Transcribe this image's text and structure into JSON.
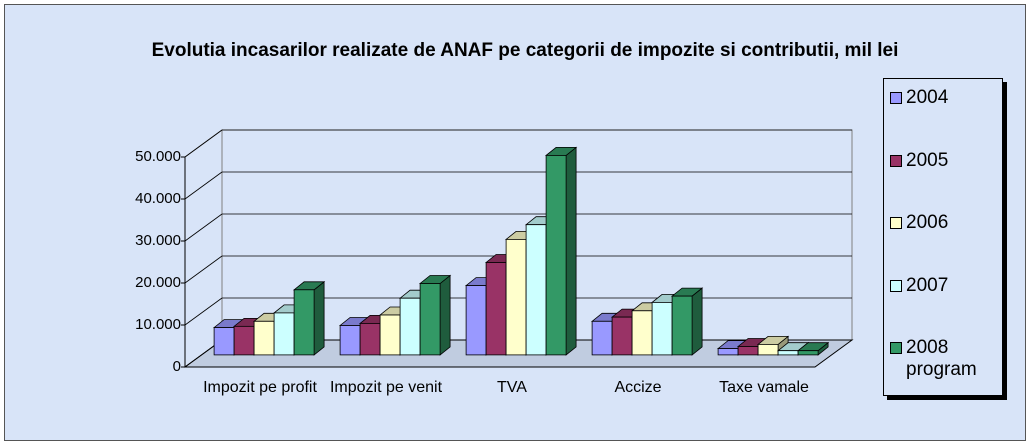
{
  "chart_data": {
    "type": "bar3d",
    "title": "Evolutia incasarilor realizate de ANAF pe categorii de impozite si contributii, mil lei",
    "categories": [
      "Impozit pe profit",
      "Impozit pe venit",
      "TVA",
      "Accize",
      "Taxe vamale"
    ],
    "series": [
      {
        "name": "2004",
        "color": "#9999ff",
        "values": [
          6500,
          7000,
          16500,
          8000,
          1500
        ]
      },
      {
        "name": "2005",
        "color": "#993366",
        "values": [
          6800,
          7500,
          22000,
          9000,
          2000
        ]
      },
      {
        "name": "2006",
        "color": "#ffffcc",
        "values": [
          8000,
          9500,
          27500,
          10500,
          2500
        ]
      },
      {
        "name": "2007",
        "color": "#ccffff",
        "values": [
          10000,
          13500,
          31000,
          12500,
          1000
        ]
      },
      {
        "name": "2008 program",
        "color": "#339966",
        "values": [
          15500,
          17000,
          47500,
          14000,
          1000
        ]
      }
    ],
    "ylim": [
      0,
      50000
    ],
    "yticks": [
      0,
      {
        "value": 10000,
        "label": "10.000"
      },
      {
        "value": 20000,
        "label": "20.000"
      },
      {
        "value": 30000,
        "label": "30.000"
      },
      {
        "value": 40000,
        "label": "40.000"
      },
      {
        "value": 50000,
        "label": "50.000"
      }
    ],
    "grid": true,
    "legend": "right"
  }
}
